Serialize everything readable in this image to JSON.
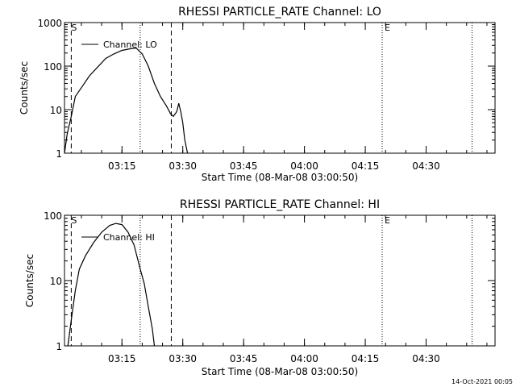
{
  "footer_timestamp": "14-Oct-2021 00:05",
  "chart_data": [
    {
      "type": "line",
      "title": "RHESSI PARTICLE_RATE Channel: LO",
      "xlabel": "Start Time (08-Mar-08 03:00:50)",
      "ylabel": "Counts/sec",
      "yscale": "log",
      "xlim": [
        "03:00:50",
        "04:47:00"
      ],
      "ylim": [
        1,
        1000
      ],
      "x_ticks": [
        "03:15",
        "03:30",
        "03:45",
        "04:00",
        "04:15",
        "04:30"
      ],
      "y_ticks": [
        "1",
        "10",
        "100",
        "1000"
      ],
      "legend": "Channel: LO",
      "legend_position": "top-left",
      "markers": {
        "S": "03:02:30",
        "E": "04:19:10",
        "dotted": [
          "03:19:30",
          "04:19:10",
          "04:41:20"
        ],
        "dashed": [
          "03:02:30",
          "03:27:10"
        ]
      },
      "series": [
        {
          "name": "Channel: LO",
          "x": [
            "03:00:50",
            "03:01:30",
            "03:02:30",
            "03:03:30",
            "03:05:00",
            "03:07:00",
            "03:09:00",
            "03:11:00",
            "03:13:00",
            "03:15:00",
            "03:17:00",
            "03:18:30",
            "03:20:00",
            "03:21:30",
            "03:23:00",
            "03:24:30",
            "03:26:00",
            "03:27:00",
            "03:27:40",
            "03:28:30",
            "03:29:00",
            "03:29:30",
            "03:30:00",
            "03:30:30",
            "03:31:10"
          ],
          "y": [
            1,
            2.8,
            7,
            20,
            32,
            60,
            95,
            150,
            190,
            230,
            250,
            260,
            190,
            100,
            40,
            20,
            12,
            8,
            7,
            9,
            14,
            9,
            5,
            2,
            1
          ]
        }
      ]
    },
    {
      "type": "line",
      "title": "RHESSI PARTICLE_RATE Channel: HI",
      "xlabel": "Start Time (08-Mar-08 03:00:50)",
      "ylabel": "Counts/sec",
      "yscale": "log",
      "xlim": [
        "03:00:50",
        "04:47:00"
      ],
      "ylim": [
        1,
        100
      ],
      "x_ticks": [
        "03:15",
        "03:30",
        "03:45",
        "04:00",
        "04:15",
        "04:30"
      ],
      "y_ticks": [
        "1",
        "10",
        "100"
      ],
      "legend": "Channel: HI",
      "legend_position": "top-left",
      "markers": {
        "S": "03:02:30",
        "E": "04:19:10",
        "dotted": [
          "03:19:30",
          "04:19:10",
          "04:41:20"
        ],
        "dashed": [
          "03:02:30",
          "03:27:10"
        ]
      },
      "series": [
        {
          "name": "Channel: HI",
          "x": [
            "03:01:40",
            "03:02:30",
            "03:03:30",
            "03:04:30",
            "03:06:00",
            "03:08:00",
            "03:10:00",
            "03:12:00",
            "03:13:30",
            "03:15:00",
            "03:16:30",
            "03:18:00",
            "03:19:30",
            "03:20:30",
            "03:21:30",
            "03:22:30",
            "03:23:00"
          ],
          "y": [
            1,
            2.5,
            7,
            15,
            24,
            38,
            55,
            70,
            75,
            72,
            55,
            35,
            15,
            9,
            4,
            1.8,
            1
          ]
        }
      ]
    }
  ]
}
